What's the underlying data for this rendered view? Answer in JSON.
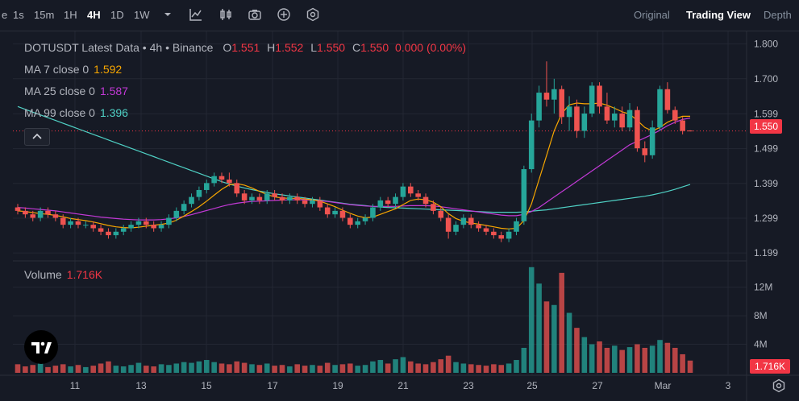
{
  "toolbar": {
    "cut_label": "e",
    "timeframes": [
      "1s",
      "15m",
      "1H",
      "4H",
      "1D",
      "1W"
    ],
    "active_timeframe": "4H",
    "views": [
      "Original",
      "Trading View",
      "Depth"
    ],
    "active_view": "Trading View"
  },
  "legend": {
    "symbol": "DOTUSDT Latest Data",
    "sep1": "•",
    "interval": "4h",
    "sep2": "•",
    "exchange": "Binance",
    "o_label": "O",
    "o_value": "1.551",
    "h_label": "H",
    "h_value": "1.552",
    "l_label": "L",
    "l_value": "1.550",
    "c_label": "C",
    "c_value": "1.550",
    "change": "0.000 (0.00%)",
    "ma7_label": "MA 7 close 0",
    "ma7_value": "1.592",
    "ma25_label": "MA 25 close 0",
    "ma25_value": "1.587",
    "ma99_label": "MA 99 close 0",
    "ma99_value": "1.396",
    "volume_label": "Volume",
    "volume_value": "1.716K"
  },
  "colors": {
    "up": "#26a69a",
    "down": "#ef5350",
    "ma7": "#f7a600",
    "ma25": "#c239d6",
    "ma99": "#4fd1c5",
    "price_tag": "#f23645"
  },
  "axes": {
    "price_ticks": [
      "1.800",
      "1.700",
      "1.599",
      "1.499",
      "1.399",
      "1.299",
      "1.199"
    ],
    "volume_ticks": [
      "12M",
      "8M",
      "4M"
    ],
    "last_price": "1.550",
    "last_volume": "1.716K",
    "x_ticks": [
      "11",
      "13",
      "15",
      "17",
      "19",
      "21",
      "23",
      "25",
      "27",
      "Mar",
      "3"
    ]
  },
  "chart_data": {
    "type": "candlestick",
    "symbol": "DOTUSDT",
    "interval": "4h",
    "exchange": "Binance",
    "ylim": [
      1.19,
      1.82
    ],
    "last_price": 1.55,
    "candles_ohlc": [
      [
        1.33,
        1.34,
        1.31,
        1.32
      ],
      [
        1.32,
        1.33,
        1.3,
        1.31
      ],
      [
        1.31,
        1.32,
        1.29,
        1.3
      ],
      [
        1.3,
        1.33,
        1.29,
        1.32
      ],
      [
        1.32,
        1.33,
        1.3,
        1.31
      ],
      [
        1.31,
        1.32,
        1.29,
        1.3
      ],
      [
        1.3,
        1.31,
        1.27,
        1.28
      ],
      [
        1.28,
        1.3,
        1.27,
        1.29
      ],
      [
        1.29,
        1.3,
        1.27,
        1.28
      ],
      [
        1.28,
        1.29,
        1.27,
        1.28
      ],
      [
        1.28,
        1.29,
        1.26,
        1.27
      ],
      [
        1.27,
        1.28,
        1.25,
        1.26
      ],
      [
        1.26,
        1.27,
        1.24,
        1.25
      ],
      [
        1.25,
        1.27,
        1.24,
        1.26
      ],
      [
        1.26,
        1.28,
        1.25,
        1.27
      ],
      [
        1.27,
        1.29,
        1.26,
        1.28
      ],
      [
        1.28,
        1.3,
        1.27,
        1.29
      ],
      [
        1.29,
        1.3,
        1.27,
        1.28
      ],
      [
        1.28,
        1.29,
        1.26,
        1.27
      ],
      [
        1.27,
        1.29,
        1.26,
        1.28
      ],
      [
        1.28,
        1.31,
        1.27,
        1.3
      ],
      [
        1.3,
        1.33,
        1.29,
        1.32
      ],
      [
        1.32,
        1.35,
        1.31,
        1.34
      ],
      [
        1.34,
        1.37,
        1.33,
        1.36
      ],
      [
        1.36,
        1.39,
        1.35,
        1.38
      ],
      [
        1.38,
        1.41,
        1.37,
        1.4
      ],
      [
        1.4,
        1.43,
        1.39,
        1.42
      ],
      [
        1.42,
        1.43,
        1.4,
        1.41
      ],
      [
        1.41,
        1.43,
        1.39,
        1.4
      ],
      [
        1.4,
        1.41,
        1.36,
        1.37
      ],
      [
        1.37,
        1.38,
        1.34,
        1.35
      ],
      [
        1.35,
        1.37,
        1.34,
        1.36
      ],
      [
        1.36,
        1.37,
        1.34,
        1.35
      ],
      [
        1.35,
        1.38,
        1.34,
        1.37
      ],
      [
        1.37,
        1.38,
        1.35,
        1.36
      ],
      [
        1.36,
        1.37,
        1.34,
        1.35
      ],
      [
        1.35,
        1.37,
        1.34,
        1.36
      ],
      [
        1.36,
        1.37,
        1.34,
        1.35
      ],
      [
        1.35,
        1.36,
        1.33,
        1.34
      ],
      [
        1.34,
        1.36,
        1.33,
        1.35
      ],
      [
        1.35,
        1.36,
        1.32,
        1.33
      ],
      [
        1.33,
        1.34,
        1.3,
        1.31
      ],
      [
        1.31,
        1.33,
        1.3,
        1.32
      ],
      [
        1.32,
        1.33,
        1.29,
        1.3
      ],
      [
        1.3,
        1.31,
        1.27,
        1.28
      ],
      [
        1.28,
        1.3,
        1.27,
        1.29
      ],
      [
        1.29,
        1.31,
        1.28,
        1.3
      ],
      [
        1.3,
        1.34,
        1.29,
        1.33
      ],
      [
        1.33,
        1.36,
        1.32,
        1.35
      ],
      [
        1.35,
        1.36,
        1.33,
        1.34
      ],
      [
        1.34,
        1.37,
        1.33,
        1.36
      ],
      [
        1.36,
        1.4,
        1.35,
        1.39
      ],
      [
        1.39,
        1.4,
        1.36,
        1.37
      ],
      [
        1.37,
        1.38,
        1.35,
        1.36
      ],
      [
        1.36,
        1.37,
        1.33,
        1.34
      ],
      [
        1.34,
        1.35,
        1.31,
        1.32
      ],
      [
        1.32,
        1.33,
        1.29,
        1.3
      ],
      [
        1.3,
        1.31,
        1.24,
        1.26
      ],
      [
        1.26,
        1.29,
        1.25,
        1.28
      ],
      [
        1.28,
        1.31,
        1.27,
        1.3
      ],
      [
        1.3,
        1.31,
        1.27,
        1.28
      ],
      [
        1.28,
        1.29,
        1.26,
        1.27
      ],
      [
        1.27,
        1.28,
        1.25,
        1.26
      ],
      [
        1.26,
        1.27,
        1.24,
        1.25
      ],
      [
        1.25,
        1.26,
        1.23,
        1.24
      ],
      [
        1.24,
        1.27,
        1.23,
        1.26
      ],
      [
        1.26,
        1.3,
        1.25,
        1.29
      ],
      [
        1.29,
        1.45,
        1.28,
        1.44
      ],
      [
        1.44,
        1.6,
        1.43,
        1.58
      ],
      [
        1.58,
        1.68,
        1.56,
        1.66
      ],
      [
        1.66,
        1.75,
        1.62,
        1.64
      ],
      [
        1.64,
        1.7,
        1.6,
        1.67
      ],
      [
        1.67,
        1.68,
        1.57,
        1.59
      ],
      [
        1.59,
        1.65,
        1.55,
        1.62
      ],
      [
        1.62,
        1.64,
        1.53,
        1.55
      ],
      [
        1.55,
        1.62,
        1.53,
        1.6
      ],
      [
        1.6,
        1.69,
        1.59,
        1.68
      ],
      [
        1.68,
        1.69,
        1.6,
        1.62
      ],
      [
        1.62,
        1.66,
        1.57,
        1.58
      ],
      [
        1.58,
        1.62,
        1.56,
        1.6
      ],
      [
        1.6,
        1.62,
        1.55,
        1.56
      ],
      [
        1.56,
        1.63,
        1.55,
        1.61
      ],
      [
        1.61,
        1.62,
        1.49,
        1.5
      ],
      [
        1.5,
        1.52,
        1.46,
        1.48
      ],
      [
        1.48,
        1.58,
        1.47,
        1.56
      ],
      [
        1.56,
        1.68,
        1.55,
        1.67
      ],
      [
        1.67,
        1.69,
        1.6,
        1.61
      ],
      [
        1.61,
        1.62,
        1.57,
        1.58
      ],
      [
        1.58,
        1.59,
        1.54,
        1.55
      ],
      [
        1.551,
        1.552,
        1.55,
        1.55
      ]
    ],
    "volumes_m": [
      1.2,
      0.9,
      1.1,
      1.3,
      0.8,
      1.0,
      1.2,
      0.9,
      1.1,
      0.8,
      1.0,
      1.3,
      1.6,
      1.0,
      0.9,
      1.1,
      1.4,
      1.0,
      0.9,
      1.2,
      1.1,
      1.3,
      1.5,
      1.4,
      1.6,
      1.8,
      1.5,
      1.3,
      1.2,
      1.6,
      1.4,
      1.2,
      1.1,
      1.3,
      1.0,
      1.1,
      0.9,
      1.2,
      1.0,
      1.1,
      1.0,
      1.4,
      1.1,
      1.2,
      1.3,
      1.0,
      1.1,
      1.6,
      1.8,
      1.3,
      1.9,
      2.2,
      1.6,
      1.3,
      1.2,
      1.5,
      1.9,
      2.4,
      1.5,
      1.3,
      1.2,
      1.1,
      1.0,
      1.2,
      1.1,
      1.3,
      1.8,
      3.5,
      14.8,
      12.5,
      10.0,
      9.5,
      14.0,
      8.4,
      6.3,
      5.0,
      4.0,
      4.4,
      3.5,
      3.8,
      3.2,
      3.6,
      4.0,
      3.5,
      3.8,
      4.6,
      4.2,
      3.5,
      2.6,
      1.716
    ],
    "ma7": [
      1.32,
      1.318,
      1.315,
      1.312,
      1.31,
      1.307,
      1.303,
      1.298,
      1.295,
      1.292,
      1.288,
      1.283,
      1.278,
      1.274,
      1.272,
      1.271,
      1.273,
      1.276,
      1.279,
      1.281,
      1.285,
      1.293,
      1.305,
      1.318,
      1.332,
      1.348,
      1.365,
      1.382,
      1.395,
      1.398,
      1.394,
      1.386,
      1.376,
      1.367,
      1.36,
      1.357,
      1.356,
      1.356,
      1.354,
      1.352,
      1.348,
      1.34,
      1.332,
      1.322,
      1.313,
      1.305,
      1.3,
      1.302,
      1.31,
      1.318,
      1.326,
      1.338,
      1.35,
      1.354,
      1.352,
      1.345,
      1.332,
      1.312,
      1.298,
      1.29,
      1.285,
      1.282,
      1.278,
      1.274,
      1.27,
      1.268,
      1.27,
      1.292,
      1.34,
      1.41,
      1.48,
      1.55,
      1.6,
      1.625,
      1.63,
      1.628,
      1.628,
      1.63,
      1.624,
      1.615,
      1.605,
      1.598,
      1.58,
      1.56,
      1.55,
      1.56,
      1.575,
      1.585,
      1.592,
      1.592
    ],
    "ma25": [
      1.33,
      1.328,
      1.326,
      1.324,
      1.322,
      1.32,
      1.317,
      1.314,
      1.311,
      1.308,
      1.305,
      1.302,
      1.3,
      1.298,
      1.296,
      1.295,
      1.294,
      1.294,
      1.294,
      1.295,
      1.297,
      1.3,
      1.304,
      1.309,
      1.315,
      1.321,
      1.327,
      1.333,
      1.338,
      1.342,
      1.345,
      1.347,
      1.348,
      1.349,
      1.35,
      1.351,
      1.352,
      1.352,
      1.352,
      1.351,
      1.349,
      1.347,
      1.344,
      1.341,
      1.338,
      1.336,
      1.334,
      1.333,
      1.333,
      1.333,
      1.333,
      1.334,
      1.335,
      1.335,
      1.335,
      1.334,
      1.332,
      1.329,
      1.326,
      1.323,
      1.32,
      1.317,
      1.314,
      1.311,
      1.308,
      1.306,
      1.306,
      1.31,
      1.318,
      1.33,
      1.345,
      1.36,
      1.375,
      1.39,
      1.405,
      1.42,
      1.435,
      1.45,
      1.465,
      1.48,
      1.495,
      1.51,
      1.52,
      1.53,
      1.54,
      1.552,
      1.565,
      1.575,
      1.583,
      1.587
    ],
    "ma99": [
      1.62,
      1.612,
      1.604,
      1.596,
      1.588,
      1.58,
      1.572,
      1.564,
      1.556,
      1.548,
      1.54,
      1.532,
      1.524,
      1.516,
      1.508,
      1.5,
      1.492,
      1.484,
      1.476,
      1.468,
      1.46,
      1.452,
      1.444,
      1.436,
      1.428,
      1.42,
      1.412,
      1.404,
      1.397,
      1.391,
      1.386,
      1.381,
      1.377,
      1.373,
      1.369,
      1.366,
      1.363,
      1.36,
      1.357,
      1.354,
      1.351,
      1.348,
      1.345,
      1.342,
      1.339,
      1.337,
      1.335,
      1.333,
      1.331,
      1.33,
      1.329,
      1.328,
      1.327,
      1.326,
      1.325,
      1.324,
      1.323,
      1.322,
      1.321,
      1.32,
      1.319,
      1.318,
      1.317,
      1.316,
      1.316,
      1.316,
      1.316,
      1.317,
      1.319,
      1.321,
      1.323,
      1.326,
      1.329,
      1.332,
      1.335,
      1.338,
      1.341,
      1.344,
      1.347,
      1.35,
      1.353,
      1.356,
      1.359,
      1.362,
      1.366,
      1.371,
      1.376,
      1.382,
      1.389,
      1.396
    ]
  }
}
